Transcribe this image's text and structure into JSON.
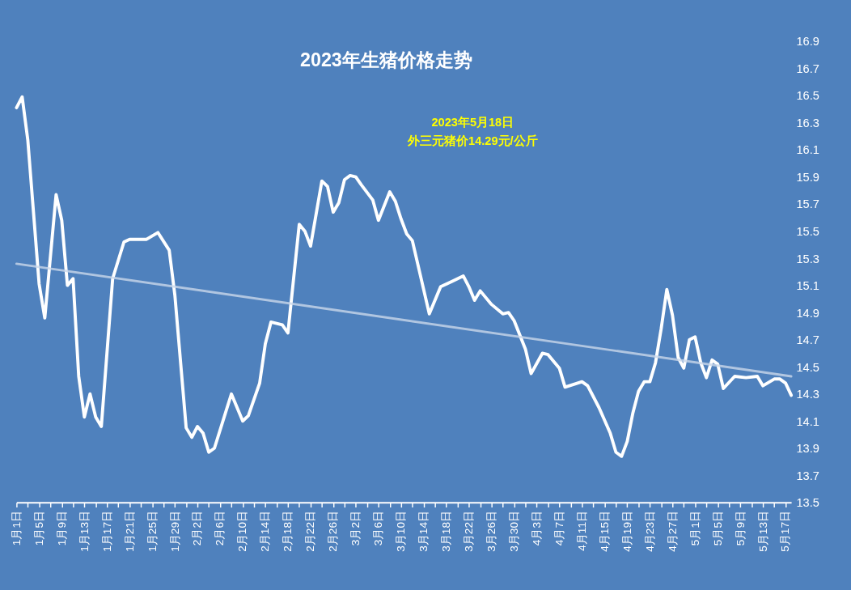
{
  "chart_data": {
    "type": "line",
    "title": "2023年生猪价格走势",
    "annotations": [
      "2023年5月18日",
      "外三元猪价14.29元/公斤"
    ],
    "xlim": [
      "2023-01-01",
      "2023-05-18"
    ],
    "ylim": [
      13.5,
      16.9
    ],
    "yticks": [
      13.5,
      13.7,
      13.9,
      14.1,
      14.3,
      14.5,
      14.7,
      14.9,
      15.1,
      15.3,
      15.5,
      15.7,
      15.9,
      16.1,
      16.3,
      16.5,
      16.7,
      16.9
    ],
    "xticks": [
      {
        "value": "2023-01-01",
        "label": "1月1日"
      },
      {
        "value": "2023-01-03",
        "label": null
      },
      {
        "value": "2023-01-05",
        "label": "1月5日"
      },
      {
        "value": "2023-01-07",
        "label": null
      },
      {
        "value": "2023-01-09",
        "label": "1月9日"
      },
      {
        "value": "2023-01-11",
        "label": null
      },
      {
        "value": "2023-01-13",
        "label": "1月13日"
      },
      {
        "value": "2023-01-15",
        "label": null
      },
      {
        "value": "2023-01-17",
        "label": "1月17日"
      },
      {
        "value": "2023-01-19",
        "label": null
      },
      {
        "value": "2023-01-21",
        "label": "1月21日"
      },
      {
        "value": "2023-01-23",
        "label": null
      },
      {
        "value": "2023-01-25",
        "label": "1月25日"
      },
      {
        "value": "2023-01-27",
        "label": null
      },
      {
        "value": "2023-01-29",
        "label": "1月29日"
      },
      {
        "value": "2023-01-31",
        "label": null
      },
      {
        "value": "2023-02-02",
        "label": "2月2日"
      },
      {
        "value": "2023-02-04",
        "label": null
      },
      {
        "value": "2023-02-06",
        "label": "2月6日"
      },
      {
        "value": "2023-02-08",
        "label": null
      },
      {
        "value": "2023-02-10",
        "label": "2月10日"
      },
      {
        "value": "2023-02-12",
        "label": null
      },
      {
        "value": "2023-02-14",
        "label": "2月14日"
      },
      {
        "value": "2023-02-16",
        "label": null
      },
      {
        "value": "2023-02-18",
        "label": "2月18日"
      },
      {
        "value": "2023-02-20",
        "label": null
      },
      {
        "value": "2023-02-22",
        "label": "2月22日"
      },
      {
        "value": "2023-02-24",
        "label": null
      },
      {
        "value": "2023-02-26",
        "label": "2月26日"
      },
      {
        "value": "2023-02-28",
        "label": null
      },
      {
        "value": "2023-03-02",
        "label": "3月2日"
      },
      {
        "value": "2023-03-04",
        "label": null
      },
      {
        "value": "2023-03-06",
        "label": "3月6日"
      },
      {
        "value": "2023-03-08",
        "label": null
      },
      {
        "value": "2023-03-10",
        "label": "3月10日"
      },
      {
        "value": "2023-03-12",
        "label": null
      },
      {
        "value": "2023-03-14",
        "label": "3月14日"
      },
      {
        "value": "2023-03-16",
        "label": null
      },
      {
        "value": "2023-03-18",
        "label": "3月18日"
      },
      {
        "value": "2023-03-20",
        "label": null
      },
      {
        "value": "2023-03-22",
        "label": "3月22日"
      },
      {
        "value": "2023-03-24",
        "label": null
      },
      {
        "value": "2023-03-26",
        "label": "3月26日"
      },
      {
        "value": "2023-03-28",
        "label": null
      },
      {
        "value": "2023-03-30",
        "label": "3月30日"
      },
      {
        "value": "2023-04-01",
        "label": null
      },
      {
        "value": "2023-04-03",
        "label": "4月3日"
      },
      {
        "value": "2023-04-05",
        "label": null
      },
      {
        "value": "2023-04-07",
        "label": "4月7日"
      },
      {
        "value": "2023-04-09",
        "label": null
      },
      {
        "value": "2023-04-11",
        "label": "4月11日"
      },
      {
        "value": "2023-04-13",
        "label": null
      },
      {
        "value": "2023-04-15",
        "label": "4月15日"
      },
      {
        "value": "2023-04-17",
        "label": null
      },
      {
        "value": "2023-04-19",
        "label": "4月19日"
      },
      {
        "value": "2023-04-21",
        "label": null
      },
      {
        "value": "2023-04-23",
        "label": "4月23日"
      },
      {
        "value": "2023-04-25",
        "label": null
      },
      {
        "value": "2023-04-27",
        "label": "4月27日"
      },
      {
        "value": "2023-04-29",
        "label": null
      },
      {
        "value": "2023-05-01",
        "label": "5月1日"
      },
      {
        "value": "2023-05-03",
        "label": null
      },
      {
        "value": "2023-05-05",
        "label": "5月5日"
      },
      {
        "value": "2023-05-07",
        "label": null
      },
      {
        "value": "2023-05-09",
        "label": "5月9日"
      },
      {
        "value": "2023-05-11",
        "label": null
      },
      {
        "value": "2023-05-13",
        "label": "5月13日"
      },
      {
        "value": "2023-05-15",
        "label": null
      },
      {
        "value": "2023-05-17",
        "label": "5月17日"
      }
    ],
    "marker": "none",
    "line_style": "solid",
    "grid": false,
    "series": [
      {
        "color": "#ffffff",
        "x": [
          "2023-01-01",
          "2023-01-02",
          "2023-01-03",
          "2023-01-05",
          "2023-01-06",
          "2023-01-08",
          "2023-01-09",
          "2023-01-10",
          "2023-01-11",
          "2023-01-12",
          "2023-01-13",
          "2023-01-14",
          "2023-01-15",
          "2023-01-16",
          "2023-01-18",
          "2023-01-20",
          "2023-01-21",
          "2023-01-24",
          "2023-01-26",
          "2023-01-28",
          "2023-01-29",
          "2023-01-31",
          "2023-02-01",
          "2023-02-02",
          "2023-02-03",
          "2023-02-04",
          "2023-02-05",
          "2023-02-08",
          "2023-02-10",
          "2023-02-11",
          "2023-02-13",
          "2023-02-14",
          "2023-02-15",
          "2023-02-17",
          "2023-02-18",
          "2023-02-20",
          "2023-02-21",
          "2023-02-22",
          "2023-02-24",
          "2023-02-25",
          "2023-02-26",
          "2023-02-27",
          "2023-02-28",
          "2023-03-01",
          "2023-03-02",
          "2023-03-03",
          "2023-03-05",
          "2023-03-06",
          "2023-03-08",
          "2023-03-09",
          "2023-03-10",
          "2023-03-11",
          "2023-03-12",
          "2023-03-15",
          "2023-03-17",
          "2023-03-19",
          "2023-03-21",
          "2023-03-22",
          "2023-03-23",
          "2023-03-24",
          "2023-03-26",
          "2023-03-28",
          "2023-03-29",
          "2023-03-30",
          "2023-04-01",
          "2023-04-02",
          "2023-04-04",
          "2023-04-05",
          "2023-04-07",
          "2023-04-08",
          "2023-04-11",
          "2023-04-12",
          "2023-04-14",
          "2023-04-16",
          "2023-04-17",
          "2023-04-18",
          "2023-04-19",
          "2023-04-20",
          "2023-04-21",
          "2023-04-22",
          "2023-04-23",
          "2023-04-24",
          "2023-04-25",
          "2023-04-26",
          "2023-04-27",
          "2023-04-28",
          "2023-04-29",
          "2023-04-30",
          "2023-05-01",
          "2023-05-02",
          "2023-05-03",
          "2023-05-04",
          "2023-05-05",
          "2023-05-06",
          "2023-05-08",
          "2023-05-10",
          "2023-05-12",
          "2023-05-13",
          "2023-05-15",
          "2023-05-16",
          "2023-05-17",
          "2023-05-18"
        ],
        "values": [
          16.41,
          16.49,
          16.17,
          15.11,
          14.86,
          15.77,
          15.58,
          15.1,
          15.15,
          14.43,
          14.13,
          14.3,
          14.13,
          14.06,
          15.15,
          15.42,
          15.44,
          15.44,
          15.49,
          15.36,
          15.03,
          14.05,
          13.98,
          14.06,
          14.01,
          13.87,
          13.9,
          14.3,
          14.1,
          14.14,
          14.38,
          14.67,
          14.83,
          14.81,
          14.75,
          15.55,
          15.5,
          15.39,
          15.87,
          15.83,
          15.64,
          15.71,
          15.88,
          15.91,
          15.9,
          15.84,
          15.73,
          15.58,
          15.79,
          15.72,
          15.59,
          15.48,
          15.43,
          14.89,
          15.09,
          15.13,
          15.17,
          15.09,
          14.99,
          15.06,
          14.96,
          14.89,
          14.9,
          14.84,
          14.63,
          14.45,
          14.6,
          14.59,
          14.49,
          14.35,
          14.39,
          14.36,
          14.2,
          14.01,
          13.87,
          13.84,
          13.95,
          14.16,
          14.32,
          14.39,
          14.39,
          14.53,
          14.78,
          15.07,
          14.88,
          14.57,
          14.49,
          14.7,
          14.72,
          14.53,
          14.42,
          14.55,
          14.52,
          14.34,
          14.43,
          14.42,
          14.43,
          14.36,
          14.41,
          14.41,
          14.38,
          14.29
        ]
      },
      {
        "type": "line",
        "color": "#c9d7ea",
        "x": [
          "2023-01-01",
          "2023-05-18"
        ],
        "values": [
          15.26,
          14.43
        ]
      }
    ]
  }
}
